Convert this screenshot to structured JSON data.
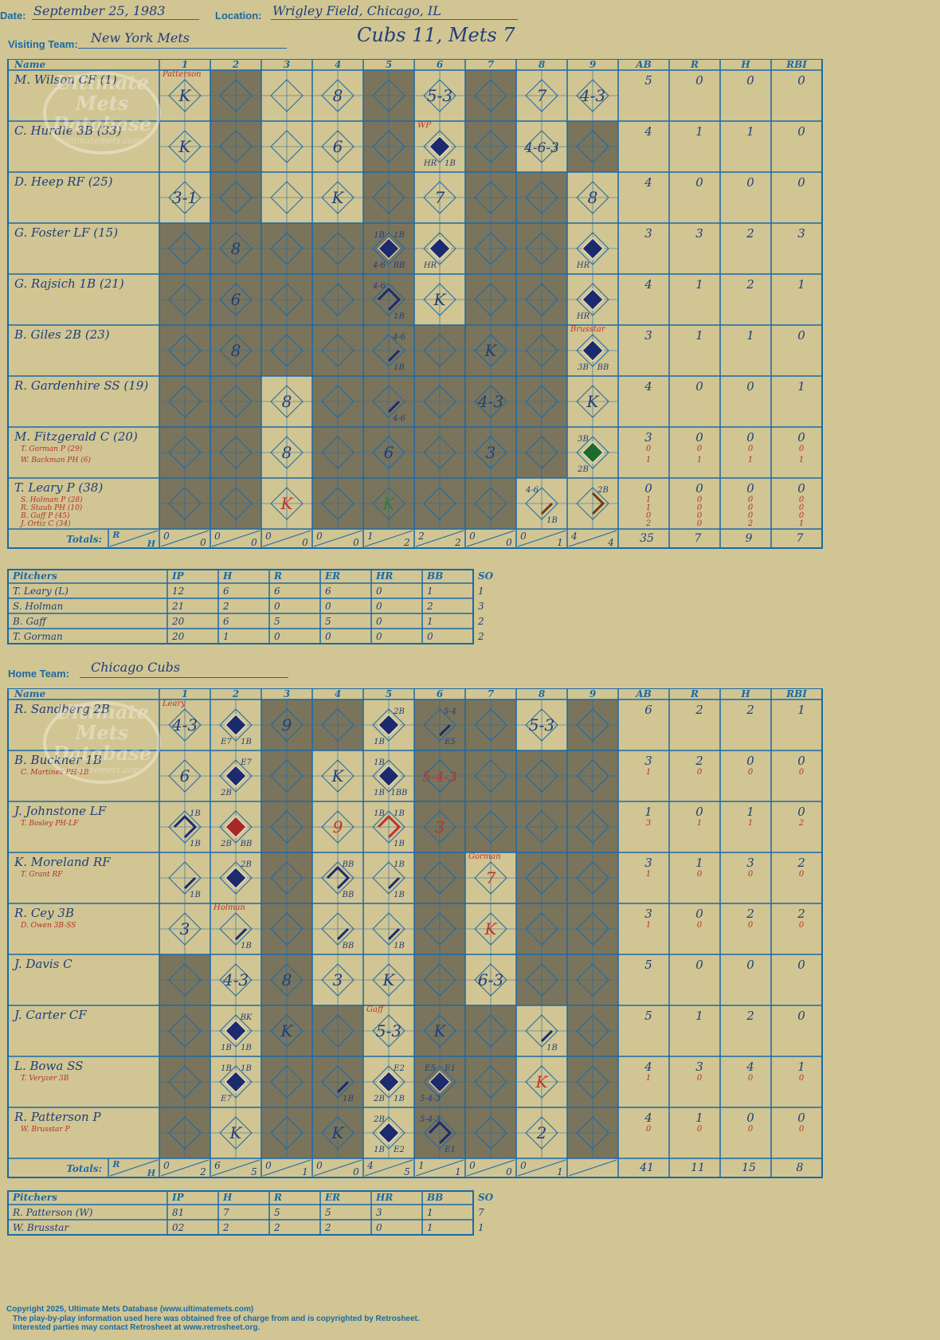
{
  "header": {
    "date_label": "Date:",
    "date": "September 25, 1983",
    "location_label": "Location:",
    "location": "Wrigley Field, Chicago, IL",
    "visiting_label": "Visiting Team:",
    "visiting_team": "New York Mets",
    "result": "Cubs 11, Mets 7",
    "home_label": "Home Team:",
    "home_team": "Chicago Cubs"
  },
  "grid_labels": {
    "name": "Name",
    "innings": [
      "1",
      "2",
      "3",
      "4",
      "5",
      "6",
      "7",
      "8",
      "9"
    ],
    "stats": [
      "AB",
      "R",
      "H",
      "RBI"
    ],
    "totals": "Totals:",
    "r": "R",
    "h": "H"
  },
  "pitch_headers": [
    "Pitchers",
    "IP",
    "H",
    "R",
    "ER",
    "HR",
    "BB",
    "SO"
  ],
  "watermark": [
    "Ultimate",
    "Mets",
    "Database",
    "ultimatemets.com"
  ],
  "visitors": {
    "dark_cols": [
      2,
      5,
      7
    ],
    "players": [
      {
        "name": "M. Wilson CF (1)",
        "subs": [],
        "stats": [
          [
            "5",
            "0",
            "0",
            "0"
          ]
        ],
        "dark": [],
        "cells": [
          {
            "i": 1,
            "txt": "K",
            "note": "Patterson"
          },
          {
            "i": 4,
            "txt": "8"
          },
          {
            "i": 6,
            "txt": "5-3"
          },
          {
            "i": 8,
            "txt": "7"
          },
          {
            "i": 9,
            "txt": "4-3"
          }
        ]
      },
      {
        "name": "C. Hurdle 3B (33)",
        "subs": [],
        "stats": [
          [
            "4",
            "1",
            "1",
            "0"
          ]
        ],
        "dark": [
          9
        ],
        "cells": [
          {
            "i": 1,
            "txt": "K"
          },
          {
            "i": 4,
            "txt": "6"
          },
          {
            "i": 6,
            "fill": "#1c2a6e",
            "note": "WP",
            "bl": "HR",
            "br": "1B"
          },
          {
            "i": 8,
            "txt": "4-6-3"
          }
        ]
      },
      {
        "name": "D. Heep RF (25)",
        "subs": [],
        "stats": [
          [
            "4",
            "0",
            "0",
            "0"
          ]
        ],
        "dark": [
          8
        ],
        "cells": [
          {
            "i": 1,
            "txt": "3-1"
          },
          {
            "i": 4,
            "txt": "K"
          },
          {
            "i": 6,
            "txt": "7"
          },
          {
            "i": 9,
            "txt": "8"
          }
        ]
      },
      {
        "name": "G. Foster LF (15)",
        "subs": [],
        "stats": [
          [
            "3",
            "3",
            "2",
            "3"
          ]
        ],
        "dark": [
          1,
          3,
          4,
          8
        ],
        "cells": [
          {
            "i": 2,
            "txt": "8"
          },
          {
            "i": 5,
            "fill": "#1c2a6e",
            "tl": "1B",
            "tr": "1B",
            "bl": "4-6",
            "br": "BB"
          },
          {
            "i": 6,
            "fill": "#1c2a6e",
            "bl": "HR"
          },
          {
            "i": 9,
            "fill": "#1c2a6e",
            "bl": "HR"
          }
        ]
      },
      {
        "name": "G. Rajsich 1B (21)",
        "subs": [],
        "stats": [
          [
            "4",
            "1",
            "2",
            "1"
          ]
        ],
        "dark": [
          1,
          3,
          4,
          8
        ],
        "cells": [
          {
            "i": 2,
            "txt": "6"
          },
          {
            "i": 5,
            "path": "full",
            "tl": "4-6",
            "br": "1B"
          },
          {
            "i": 6,
            "txt": "K"
          },
          {
            "i": 9,
            "fill": "#1c2a6e",
            "bl": "HR"
          }
        ]
      },
      {
        "name": "B. Giles 2B (23)",
        "subs": [],
        "stats": [
          [
            "3",
            "1",
            "1",
            "0"
          ]
        ],
        "dark": [
          1,
          3,
          4,
          6,
          8
        ],
        "cells": [
          {
            "i": 2,
            "txt": "8"
          },
          {
            "i": 5,
            "path": "1b",
            "tr": "4-6",
            "br": "1B"
          },
          {
            "i": 7,
            "txt": "K"
          },
          {
            "i": 9,
            "fill": "#1c2a6e",
            "note": "Brusstar",
            "bl": "3B",
            "br": "BB"
          }
        ]
      },
      {
        "name": "R. Gardenhire SS (19)",
        "subs": [],
        "stats": [
          [
            "4",
            "0",
            "0",
            "1"
          ]
        ],
        "dark": [
          1,
          2,
          4,
          6,
          8
        ],
        "cells": [
          {
            "i": 3,
            "txt": "8"
          },
          {
            "i": 5,
            "path": "1b",
            "br": "4-6"
          },
          {
            "i": 7,
            "txt": "4-3"
          },
          {
            "i": 9,
            "txt": "K"
          }
        ]
      },
      {
        "name": "M. Fitzgerald C (20)",
        "subs": [
          "T. Gorman P (29)",
          "W. Backman PH (6)"
        ],
        "stats": [
          [
            "3",
            "0",
            "0",
            "0"
          ],
          [
            "0",
            "0",
            "0",
            "0"
          ],
          [
            "1",
            "1",
            "1",
            "1"
          ]
        ],
        "dark": [
          1,
          2,
          4,
          6,
          8
        ],
        "cells": [
          {
            "i": 3,
            "txt": "8"
          },
          {
            "i": 5,
            "txt": "6"
          },
          {
            "i": 7,
            "txt": "3"
          },
          {
            "i": 9,
            "fill": "#1e6a2c",
            "tl": "3B",
            "bl": "2B"
          }
        ]
      },
      {
        "name": "T. Leary P (38)",
        "subs": [
          "S. Holman P (28)",
          "R. Staub PH (10)",
          "B. Gaff P (45)",
          "J. Ortiz C (34)"
        ],
        "stats": [
          [
            "0",
            "0",
            "0",
            "0"
          ],
          [
            "1",
            "0",
            "0",
            "0"
          ],
          [
            "1",
            "0",
            "0",
            "0"
          ],
          [
            "0",
            "0",
            "0",
            "0"
          ],
          [
            "2",
            "0",
            "2",
            "1"
          ]
        ],
        "dark": [
          1,
          2,
          4,
          6,
          7
        ],
        "cells": [
          {
            "i": 3,
            "txt": "K",
            "color": "#c0312a"
          },
          {
            "i": 5,
            "txt": "K",
            "color": "#2f7d3a"
          },
          {
            "i": 8,
            "path": "1b",
            "pathColor": "#6b3d1a",
            "tl": "4-6",
            "br": "1B"
          },
          {
            "i": 9,
            "path": "2b",
            "pathColor": "#6b3d1a",
            "tr": "2B"
          }
        ]
      }
    ],
    "totals": [
      [
        "0",
        "0"
      ],
      [
        "0",
        "0"
      ],
      [
        "0",
        "0"
      ],
      [
        "0",
        "0"
      ],
      [
        "1",
        "2"
      ],
      [
        "2",
        "2"
      ],
      [
        "0",
        "0"
      ],
      [
        "0",
        "1"
      ],
      [
        "4",
        "4"
      ]
    ],
    "totals_stats": [
      "35",
      "7",
      "9",
      "7"
    ],
    "pitchers": [
      [
        "T. Leary (L)",
        "12",
        "6",
        "6",
        "6",
        "0",
        "1",
        "1"
      ],
      [
        "S. Holman",
        "21",
        "2",
        "0",
        "0",
        "0",
        "2",
        "3"
      ],
      [
        "B. Gaff",
        "20",
        "6",
        "5",
        "5",
        "0",
        "1",
        "2"
      ],
      [
        "T. Gorman",
        "20",
        "1",
        "0",
        "0",
        "0",
        "0",
        "2"
      ]
    ]
  },
  "home": {
    "dark_cols": [
      3,
      6,
      9
    ],
    "players": [
      {
        "name": "R. Sandberg 2B",
        "subs": [],
        "stats": [
          [
            "6",
            "2",
            "2",
            "1"
          ]
        ],
        "dark": [
          4,
          7
        ],
        "cells": [
          {
            "i": 1,
            "txt": "4-3",
            "note": "Leary"
          },
          {
            "i": 2,
            "fill": "#1c2a6e",
            "bl": "E7",
            "br": "1B"
          },
          {
            "i": 3,
            "txt": "9"
          },
          {
            "i": 5,
            "fill": "#1c2a6e",
            "tr": "2B",
            "bl": "1B"
          },
          {
            "i": 6,
            "path": "1b",
            "tr": "5-4",
            "br": "E5"
          },
          {
            "i": 8,
            "txt": "5-3"
          }
        ]
      },
      {
        "name": "B. Buckner 1B",
        "subs": [
          "C. Martinez PH-1B"
        ],
        "stats": [
          [
            "3",
            "2",
            "0",
            "0"
          ],
          [
            "1",
            "0",
            "0",
            "0"
          ]
        ],
        "dark": [
          3,
          7,
          8
        ],
        "cells": [
          {
            "i": 1,
            "txt": "6"
          },
          {
            "i": 2,
            "fill": "#1c2a6e",
            "tr": "E7",
            "bl": "2B"
          },
          {
            "i": 4,
            "txt": "K"
          },
          {
            "i": 5,
            "fill": "#1c2a6e",
            "tl": "1B",
            "bl": "1B",
            "br": "1BB"
          },
          {
            "i": 6,
            "txt": "5-4-3",
            "color": "#c0312a"
          }
        ]
      },
      {
        "name": "J. Johnstone LF",
        "subs": [
          "T. Bosley PH-LF"
        ],
        "stats": [
          [
            "1",
            "0",
            "1",
            "0"
          ],
          [
            "3",
            "1",
            "1",
            "2"
          ]
        ],
        "dark": [
          3,
          7,
          8
        ],
        "cells": [
          {
            "i": 1,
            "path": "full",
            "tr": "1B",
            "br": "1B"
          },
          {
            "i": 2,
            "fill": "#a8282a",
            "bl": "2B",
            "br": "BB"
          },
          {
            "i": 4,
            "txt": "9",
            "color": "#c0312a"
          },
          {
            "i": 5,
            "path": "full",
            "pathColor": "#c0312a",
            "tl": "1B",
            "tr": "1B",
            "br": "1B"
          },
          {
            "i": 6,
            "txt": "3",
            "color": "#c0312a"
          }
        ]
      },
      {
        "name": "K. Moreland RF",
        "subs": [
          "T. Grant RF"
        ],
        "stats": [
          [
            "3",
            "1",
            "3",
            "2"
          ],
          [
            "1",
            "0",
            "0",
            "0"
          ]
        ],
        "dark": [
          3,
          6,
          8
        ],
        "cells": [
          {
            "i": 1,
            "path": "1b",
            "br": "1B"
          },
          {
            "i": 2,
            "fill": "#1c2a6e",
            "tr": "2B"
          },
          {
            "i": 4,
            "path": "full",
            "tr": "BB",
            "br": "BB"
          },
          {
            "i": 5,
            "path": "1b",
            "tr": "1B",
            "br": "1B"
          },
          {
            "i": 7,
            "txt": "7",
            "color": "#c0312a",
            "note": "Gorman"
          }
        ]
      },
      {
        "name": "R. Cey 3B",
        "subs": [
          "D. Owen 3B-SS"
        ],
        "stats": [
          [
            "3",
            "0",
            "2",
            "2"
          ],
          [
            "1",
            "0",
            "0",
            "0"
          ]
        ],
        "dark": [
          3,
          6,
          8
        ],
        "cells": [
          {
            "i": 1,
            "txt": "3"
          },
          {
            "i": 2,
            "path": "1b",
            "note": "Holman",
            "br": "1B"
          },
          {
            "i": 4,
            "path": "1b",
            "br": "BB"
          },
          {
            "i": 5,
            "path": "1b",
            "br": "1B"
          },
          {
            "i": 7,
            "txt": "K",
            "color": "#c0312a"
          }
        ]
      },
      {
        "name": "J. Davis C",
        "subs": [],
        "stats": [
          [
            "5",
            "0",
            "0",
            "0"
          ]
        ],
        "dark": [
          1,
          6,
          8
        ],
        "cells": [
          {
            "i": 2,
            "txt": "4-3"
          },
          {
            "i": 3,
            "txt": "8"
          },
          {
            "i": 4,
            "txt": "3"
          },
          {
            "i": 5,
            "txt": "K"
          },
          {
            "i": 7,
            "txt": "6-3"
          }
        ]
      },
      {
        "name": "J. Carter CF",
        "subs": [],
        "stats": [
          [
            "5",
            "1",
            "2",
            "0"
          ]
        ],
        "dark": [
          1,
          4,
          7
        ],
        "cells": [
          {
            "i": 2,
            "fill": "#1c2a6e",
            "tr": "BK",
            "bl": "1B",
            "br": "1B"
          },
          {
            "i": 3,
            "txt": "K"
          },
          {
            "i": 5,
            "txt": "5-3",
            "note": "Gaff"
          },
          {
            "i": 6,
            "txt": "K"
          },
          {
            "i": 8,
            "path": "1b",
            "br": "1B"
          }
        ]
      },
      {
        "name": "L. Bowa SS",
        "subs": [
          "T. Veryzer 3B"
        ],
        "stats": [
          [
            "4",
            "3",
            "4",
            "1"
          ],
          [
            "1",
            "0",
            "0",
            "0"
          ]
        ],
        "dark": [
          1,
          3,
          4,
          7
        ],
        "cells": [
          {
            "i": 2,
            "fill": "#1c2a6e",
            "tl": "1B",
            "tr": "1B",
            "bl": "E7"
          },
          {
            "i": 4,
            "path": "1b",
            "br": "1B"
          },
          {
            "i": 5,
            "fill": "#1c2a6e",
            "tr": "E2",
            "bl": "2B",
            "br": "1B"
          },
          {
            "i": 6,
            "fill": "#1c2a6e",
            "tl": "E5",
            "tr": "E1",
            "bl": "5-4-3"
          },
          {
            "i": 8,
            "txt": "K",
            "color": "#c0312a"
          }
        ]
      },
      {
        "name": "R. Patterson P",
        "subs": [
          "W. Brusstar P"
        ],
        "stats": [
          [
            "4",
            "1",
            "0",
            "0"
          ],
          [
            "0",
            "0",
            "0",
            "0"
          ]
        ],
        "dark": [
          1,
          3,
          4,
          7
        ],
        "cells": [
          {
            "i": 2,
            "txt": "K"
          },
          {
            "i": 4,
            "txt": "K"
          },
          {
            "i": 5,
            "fill": "#1c2a6e",
            "tl": "2B",
            "bl": "1B",
            "br": "E2"
          },
          {
            "i": 6,
            "path": "full",
            "tl": "5-4-3",
            "br": "E1"
          },
          {
            "i": 8,
            "txt": "2"
          }
        ]
      }
    ],
    "totals": [
      [
        "0",
        "2"
      ],
      [
        "6",
        "5"
      ],
      [
        "0",
        "1"
      ],
      [
        "0",
        "0"
      ],
      [
        "4",
        "5"
      ],
      [
        "1",
        "1"
      ],
      [
        "0",
        "0"
      ],
      [
        "0",
        "1"
      ],
      [
        "",
        ""
      ]
    ],
    "totals_stats": [
      "41",
      "11",
      "15",
      "8"
    ],
    "pitchers": [
      [
        "R. Patterson (W)",
        "81",
        "7",
        "5",
        "5",
        "3",
        "1",
        "7"
      ],
      [
        "W. Brusstar",
        "02",
        "2",
        "2",
        "2",
        "0",
        "1",
        "1"
      ]
    ]
  },
  "footer": {
    "line1": "Copyright 2025, Ultimate Mets Database (www.ultimatemets.com)",
    "line2": "The play-by-play information used here was obtained free of charge from and is copyrighted by Retrosheet.",
    "line3": "Interested parties may contact Retrosheet at www.retrosheet.org."
  }
}
